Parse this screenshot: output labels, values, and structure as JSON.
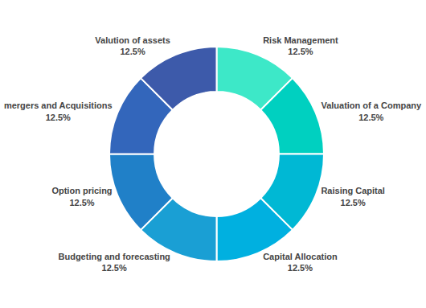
{
  "chart_data": {
    "type": "pie",
    "categories": [
      "Risk Management",
      "Valuation of a Company",
      "Raising Capital",
      "Capital Allocation",
      "Budgeting and forecasting",
      "Option pricing",
      "mergers and Acquisitions",
      "Valution of assets"
    ],
    "values": [
      12.5,
      12.5,
      12.5,
      12.5,
      12.5,
      12.5,
      12.5,
      12.5
    ],
    "value_labels": [
      "12.5%",
      "12.5%",
      "12.5%",
      "12.5%",
      "12.5%",
      "12.5%",
      "12.5%",
      "12.5%"
    ],
    "colors": [
      "#3de8c8",
      "#00d0c0",
      "#00b8d4",
      "#00b0e0",
      "#1a9fd4",
      "#2080c8",
      "#3366bb",
      "#3d5aaa"
    ],
    "data_labels": true
  }
}
